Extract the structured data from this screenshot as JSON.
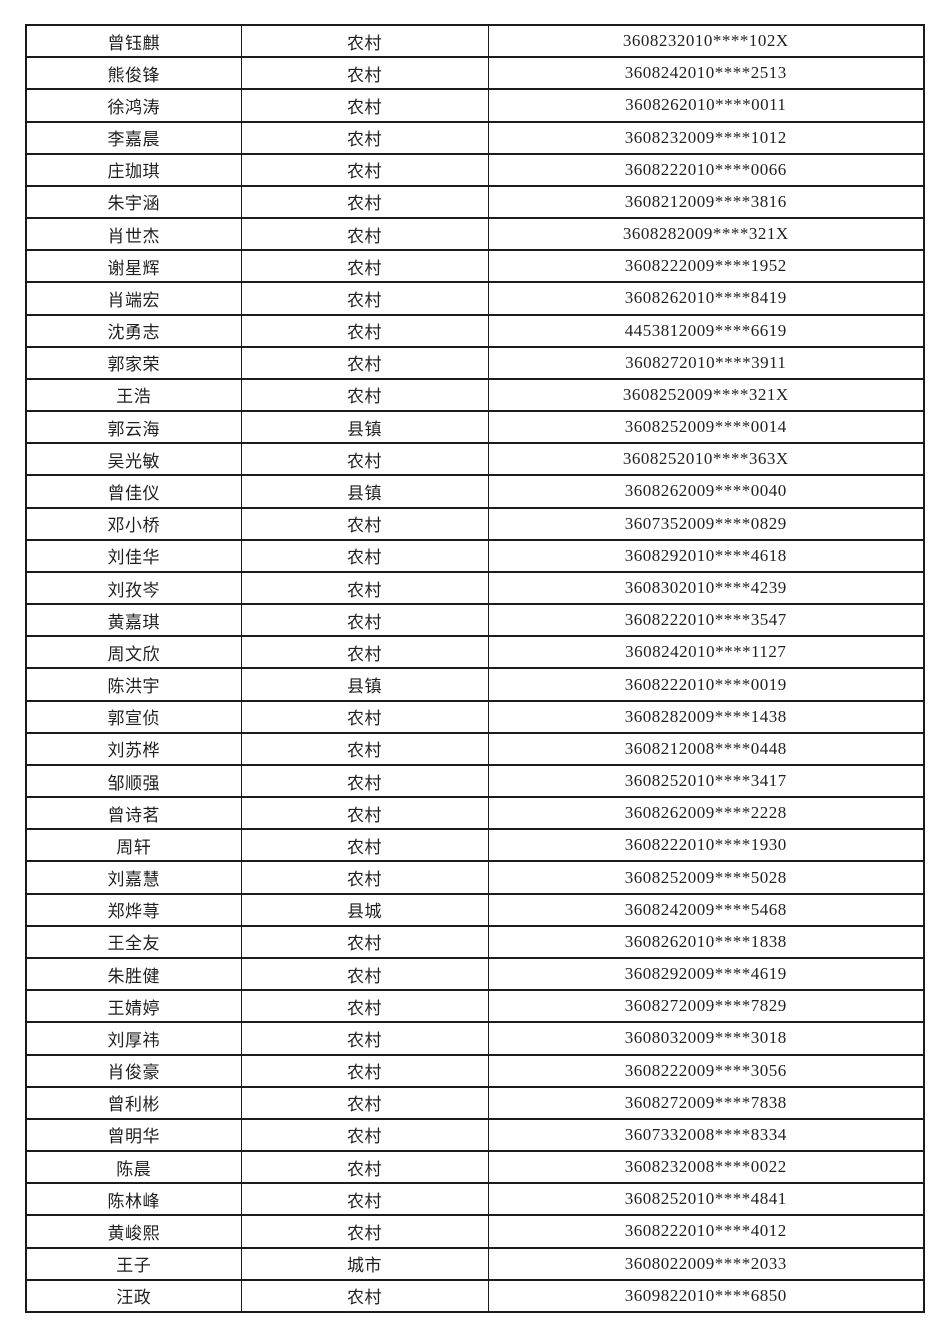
{
  "colors": {
    "background": "#ffffff",
    "border": "#1b1b1b",
    "text": "#1f1f1f"
  },
  "table": {
    "columns": [
      {
        "key": "name",
        "semantic": "student-name"
      },
      {
        "key": "residence",
        "semantic": "residence-type"
      },
      {
        "key": "id",
        "semantic": "id-number-masked"
      }
    ],
    "rows": [
      {
        "name": "曾钰麒",
        "residence": "农村",
        "id": "3608232010****102X"
      },
      {
        "name": "熊俊锋",
        "residence": "农村",
        "id": "3608242010****2513"
      },
      {
        "name": "徐鸿涛",
        "residence": "农村",
        "id": "3608262010****0011"
      },
      {
        "name": "李嘉晨",
        "residence": "农村",
        "id": "3608232009****1012"
      },
      {
        "name": "庄珈琪",
        "residence": "农村",
        "id": "3608222010****0066"
      },
      {
        "name": "朱宇涵",
        "residence": "农村",
        "id": "3608212009****3816"
      },
      {
        "name": "肖世杰",
        "residence": "农村",
        "id": "3608282009****321X"
      },
      {
        "name": "谢星辉",
        "residence": "农村",
        "id": "3608222009****1952"
      },
      {
        "name": "肖端宏",
        "residence": "农村",
        "id": "3608262010****8419"
      },
      {
        "name": "沈勇志",
        "residence": "农村",
        "id": "4453812009****6619"
      },
      {
        "name": "郭家荣",
        "residence": "农村",
        "id": "3608272010****3911"
      },
      {
        "name": "王浩",
        "residence": "农村",
        "id": "3608252009****321X"
      },
      {
        "name": "郭云海",
        "residence": "县镇",
        "id": "3608252009****0014"
      },
      {
        "name": "吴光敏",
        "residence": "农村",
        "id": "3608252010****363X"
      },
      {
        "name": "曾佳仪",
        "residence": "县镇",
        "id": "3608262009****0040"
      },
      {
        "name": "邓小桥",
        "residence": "农村",
        "id": "3607352009****0829"
      },
      {
        "name": "刘佳华",
        "residence": "农村",
        "id": "3608292010****4618"
      },
      {
        "name": "刘孜岑",
        "residence": "农村",
        "id": "3608302010****4239"
      },
      {
        "name": "黄嘉琪",
        "residence": "农村",
        "id": "3608222010****3547"
      },
      {
        "name": "周文欣",
        "residence": "农村",
        "id": "3608242010****1127"
      },
      {
        "name": "陈洪宇",
        "residence": "县镇",
        "id": "3608222010****0019"
      },
      {
        "name": "郭宣侦",
        "residence": "农村",
        "id": "3608282009****1438"
      },
      {
        "name": "刘苏桦",
        "residence": "农村",
        "id": "3608212008****0448"
      },
      {
        "name": "邹顺强",
        "residence": "农村",
        "id": "3608252010****3417"
      },
      {
        "name": "曾诗茗",
        "residence": "农村",
        "id": "3608262009****2228"
      },
      {
        "name": "周轩",
        "residence": "农村",
        "id": "3608222010****1930"
      },
      {
        "name": "刘嘉慧",
        "residence": "农村",
        "id": "3608252009****5028"
      },
      {
        "name": "郑烨荨",
        "residence": "县城",
        "id": "3608242009****5468"
      },
      {
        "name": "王全友",
        "residence": "农村",
        "id": "3608262010****1838"
      },
      {
        "name": "朱胜健",
        "residence": "农村",
        "id": "3608292009****4619"
      },
      {
        "name": "王婧婷",
        "residence": "农村",
        "id": "3608272009****7829"
      },
      {
        "name": "刘厚祎",
        "residence": "农村",
        "id": "3608032009****3018"
      },
      {
        "name": "肖俊豪",
        "residence": "农村",
        "id": "3608222009****3056"
      },
      {
        "name": "曾利彬",
        "residence": "农村",
        "id": "3608272009****7838"
      },
      {
        "name": "曾明华",
        "residence": "农村",
        "id": "3607332008****8334"
      },
      {
        "name": "陈晨",
        "residence": "农村",
        "id": "3608232008****0022"
      },
      {
        "name": "陈林峰",
        "residence": "农村",
        "id": "3608252010****4841"
      },
      {
        "name": "黄峻熙",
        "residence": "农村",
        "id": "3608222010****4012"
      },
      {
        "name": "王子",
        "residence": "城市",
        "id": "3608022009****2033"
      },
      {
        "name": "汪政",
        "residence": "农村",
        "id": "3609822010****6850"
      }
    ]
  }
}
